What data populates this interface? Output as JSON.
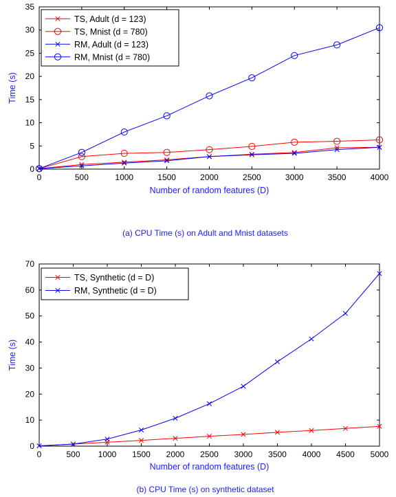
{
  "chart_data": [
    {
      "type": "line",
      "caption": "(a) CPU Time (s) on Adult and Mnist datasets",
      "xlabel": "Number of random features (D)",
      "ylabel": "Time (s)",
      "xlim": [
        0,
        4000
      ],
      "ylim": [
        0,
        35
      ],
      "xticks": [
        "0",
        "500",
        "1000",
        "1500",
        "2000",
        "2500",
        "3000",
        "3500",
        "4000"
      ],
      "yticks": [
        "0",
        "5",
        "10",
        "15",
        "20",
        "25",
        "30",
        "35"
      ],
      "grid": false,
      "legend_position": "top-left",
      "x": [
        0,
        500,
        1000,
        1500,
        2000,
        2500,
        3000,
        3500,
        4000
      ],
      "series": [
        {
          "name": "TS, Adult (d = 123)",
          "color": "#ff0000",
          "marker": "x",
          "values": [
            0.1,
            1.0,
            1.5,
            2.0,
            2.7,
            3.2,
            3.6,
            4.6,
            4.7
          ]
        },
        {
          "name": "TS, Mnist (d = 780)",
          "color": "#ff0000",
          "marker": "o",
          "values": [
            0.1,
            2.7,
            3.4,
            3.6,
            4.2,
            4.9,
            5.8,
            6.0,
            6.3
          ]
        },
        {
          "name": "RM, Adult (d = 123)",
          "color": "#0000ff",
          "marker": "x",
          "values": [
            0.1,
            0.7,
            1.3,
            1.8,
            2.7,
            3.1,
            3.4,
            4.2,
            4.7
          ]
        },
        {
          "name": "RM, Mnist (d = 780)",
          "color": "#0000ff",
          "marker": "o",
          "values": [
            0.1,
            3.6,
            8.0,
            11.5,
            15.8,
            19.7,
            24.5,
            26.8,
            30.5
          ]
        }
      ]
    },
    {
      "type": "line",
      "caption": "(b) CPU Time (s) on synthetic dataset",
      "xlabel": "Number of random features (D)",
      "ylabel": "Time (s)",
      "xlim": [
        0,
        5000
      ],
      "ylim": [
        0,
        70
      ],
      "xticks": [
        "0",
        "500",
        "1000",
        "1500",
        "2000",
        "2500",
        "3000",
        "3500",
        "4000",
        "4500",
        "5000"
      ],
      "yticks": [
        "0",
        "10",
        "20",
        "30",
        "40",
        "50",
        "60",
        "70"
      ],
      "grid": false,
      "legend_position": "top-left",
      "x": [
        0,
        500,
        1000,
        1500,
        2000,
        2500,
        3000,
        3500,
        4000,
        4500,
        5000
      ],
      "series": [
        {
          "name": "TS, Synthetic (d = D)",
          "color": "#ff0000",
          "marker": "x",
          "values": [
            0.1,
            0.8,
            1.5,
            2.2,
            3.0,
            3.8,
            4.5,
            5.3,
            6.0,
            6.8,
            7.6
          ]
        },
        {
          "name": "RM, Synthetic (d = D)",
          "color": "#0000ff",
          "marker": "x",
          "values": [
            0.1,
            0.8,
            2.7,
            6.2,
            10.7,
            16.3,
            23.0,
            32.4,
            41.2,
            51.0,
            66.3
          ]
        }
      ]
    }
  ]
}
